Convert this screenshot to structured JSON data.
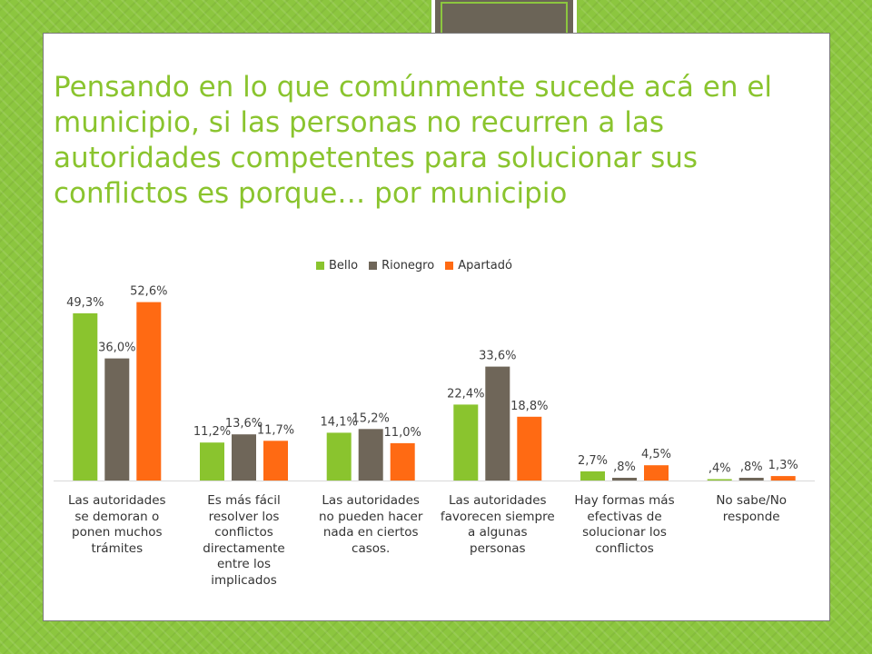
{
  "slide": {
    "title": "Pensando en lo que comúnmente sucede acá en el municipio, si las personas no recurren a las autoridades competentes para solucionar sus conflictos es porque… por municipio"
  },
  "chart_data": {
    "type": "bar",
    "categories": [
      "Las autoridades se demoran o ponen muchos trámites",
      "Es más fácil resolver los conflictos directamente entre los implicados",
      "Las autoridades no pueden hacer nada en ciertos casos.",
      "Las autoridades favorecen siempre a algunas personas",
      "Hay formas más efectivas de solucionar los conflictos",
      "No sabe/No responde"
    ],
    "series": [
      {
        "name": "Bello",
        "color": "#8ac42e",
        "values": [
          49.3,
          11.2,
          14.1,
          22.4,
          2.7,
          0.4
        ],
        "labels": [
          "49,3%",
          "11,2%",
          "14,1%",
          "22,4%",
          "2,7%",
          ",4%"
        ]
      },
      {
        "name": "Rionegro",
        "color": "#6f6659",
        "values": [
          36.0,
          13.6,
          15.2,
          33.6,
          0.8,
          0.8
        ],
        "labels": [
          "36,0%",
          "13,6%",
          "15,2%",
          "33,6%",
          ",8%",
          ",8%"
        ]
      },
      {
        "name": "Apartadó",
        "color": "#ff6a13",
        "values": [
          52.6,
          11.7,
          11.0,
          18.8,
          4.5,
          1.3
        ],
        "labels": [
          "52,6%",
          "11,7%",
          "11,0%",
          "18,8%",
          "4,5%",
          "1,3%"
        ]
      }
    ],
    "legend_position": "top",
    "ylim": [
      0,
      60
    ],
    "grid": false
  }
}
